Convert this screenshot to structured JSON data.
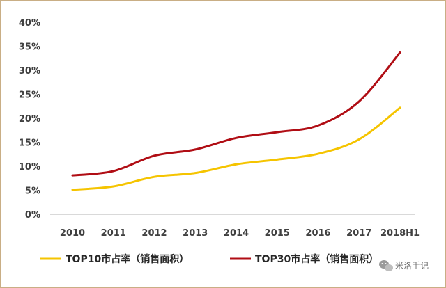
{
  "chart_data": {
    "type": "line",
    "title": "",
    "xlabel": "",
    "ylabel": "",
    "categories": [
      "2010",
      "2011",
      "2012",
      "2013",
      "2014",
      "2015",
      "2016",
      "2017",
      "2018H1"
    ],
    "y_ticks": [
      "0%",
      "5%",
      "10%",
      "15%",
      "20%",
      "25%",
      "30%",
      "35%",
      "40%"
    ],
    "ylim": [
      0,
      40
    ],
    "grid": false,
    "legend_position": "bottom",
    "series": [
      {
        "name": "TOP10市占率（销售面积）",
        "color": "#f5c400",
        "values": [
          5.1,
          5.8,
          7.8,
          8.6,
          10.4,
          11.4,
          12.6,
          15.6,
          22.2
        ]
      },
      {
        "name": "TOP30市占率（销售面积）",
        "color": "#b00d14",
        "values": [
          8.1,
          9.0,
          12.2,
          13.5,
          15.9,
          17.1,
          18.5,
          23.5,
          33.7
        ]
      }
    ]
  },
  "watermark": {
    "text": "米洛手记",
    "icon": "wechat-icon"
  }
}
